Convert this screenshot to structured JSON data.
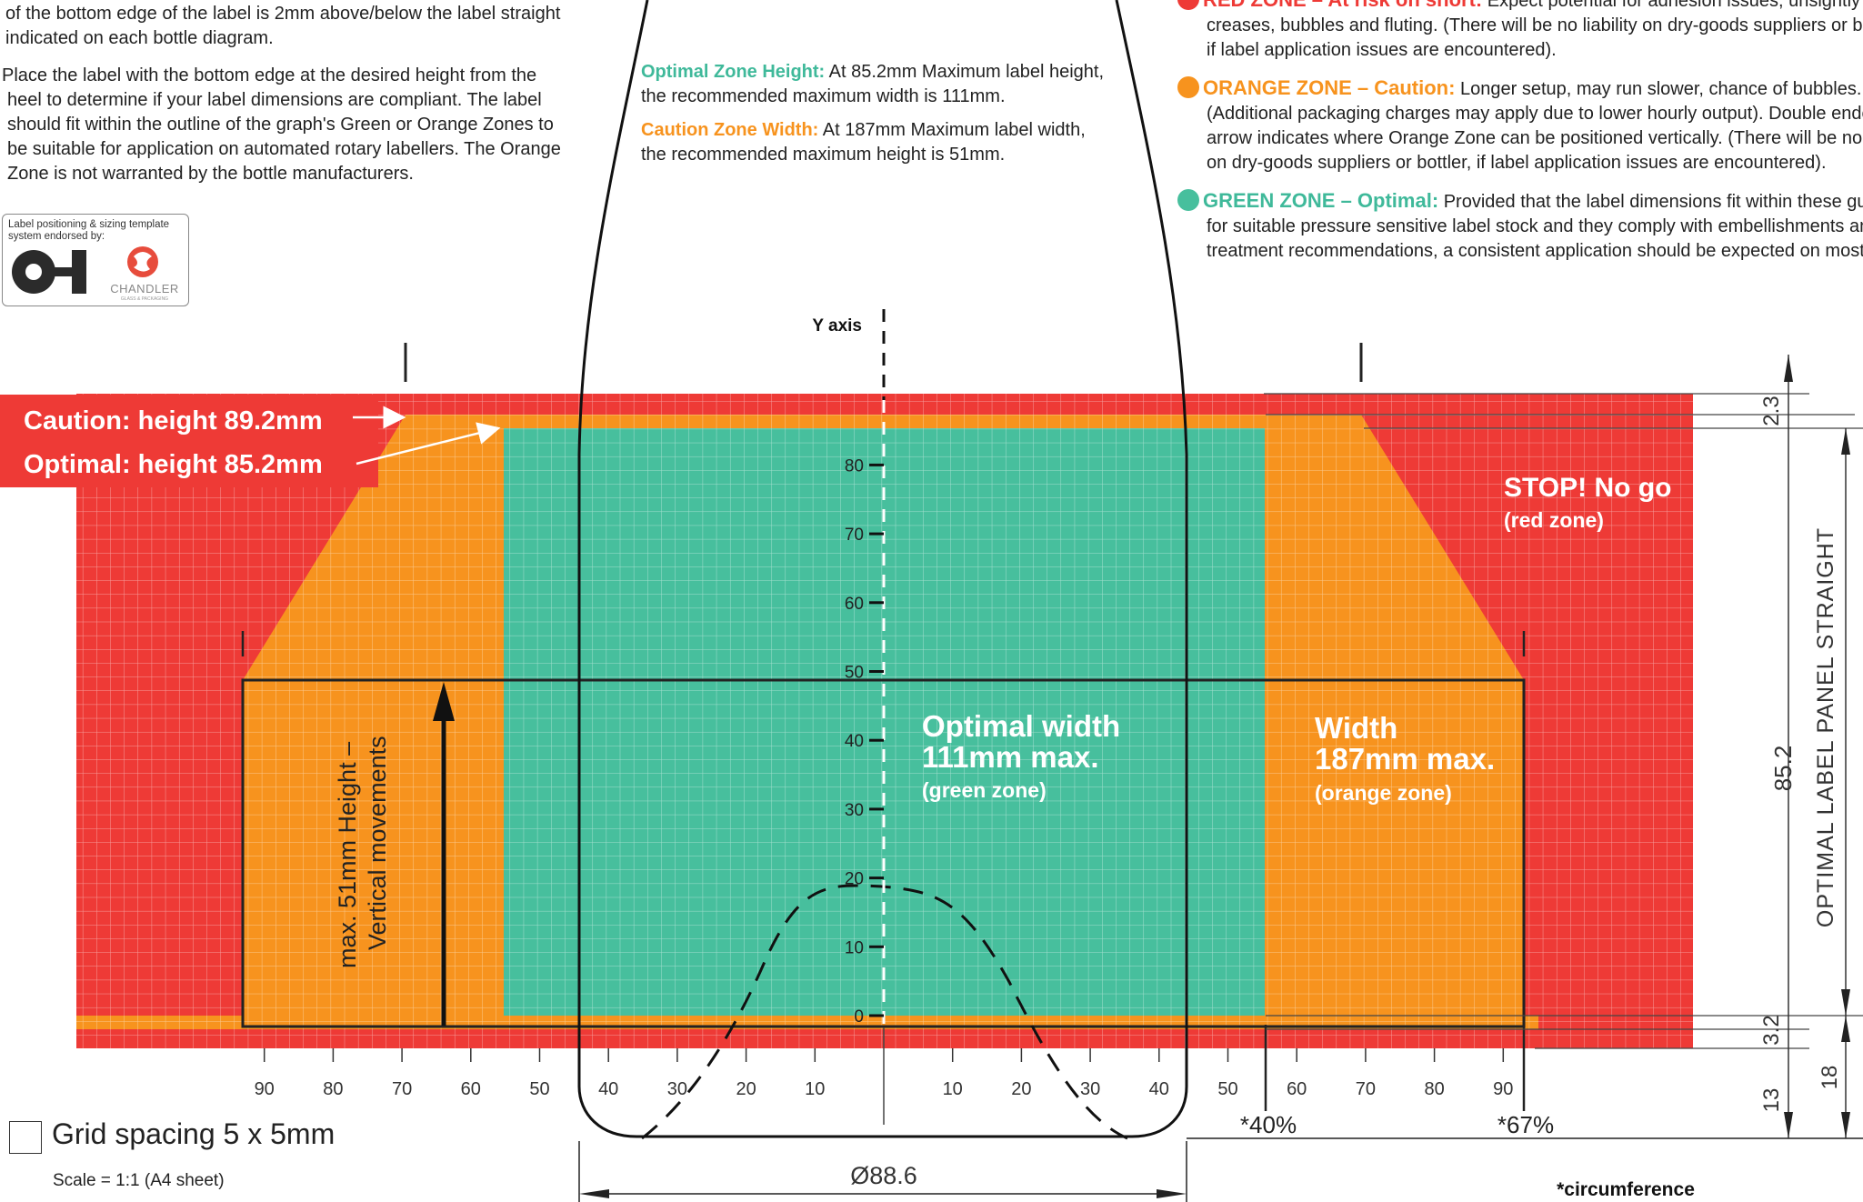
{
  "left_text": {
    "para1_lines": [
      "of the bottom edge of the label is 2mm above/below the label straight",
      "indicated on each bottle diagram."
    ],
    "para2_lines": [
      "Place the label with the bottom edge at the desired height from the",
      "heel to determine if your label dimensions are compliant. The label",
      "should fit within the outline of the graph's Green or Orange Zones to",
      "be suitable for application on automated rotary labellers. The Orange",
      "Zone is not warranted by the bottle manufacturers."
    ]
  },
  "endorsement": {
    "caption_line1": "Label positioning & sizing template",
    "caption_line2": "system endorsed by:",
    "logo1_text": "O-I",
    "logo2_text": "CHANDLER",
    "logo2_sub": "GLASS & PACKAGING"
  },
  "center_text": {
    "optimal_heading": "Optimal Zone Height:",
    "optimal_line1": "At 85.2mm Maximum label height,",
    "optimal_line2": "the recommended maximum width is 111mm.",
    "caution_heading": "Caution Zone Width:",
    "caution_line1": "At 187mm Maximum label width,",
    "caution_line2": "the recommended maximum height is 51mm."
  },
  "legend": {
    "red_heading": "RED ZONE – At risk on short:",
    "red_lines": [
      "Expect potential for adhesion issues, unsightly",
      "creases, bubbles and fluting. (There will be no liability on dry-goods suppliers or bo",
      "if label application issues are encountered)."
    ],
    "orange_heading": "ORANGE ZONE – Caution:",
    "orange_lines": [
      "Longer setup, may run slower, chance of bubbles.",
      "(Additional packaging charges may apply due to lower hourly output). Double ende",
      "arrow indicates where Orange Zone can be positioned vertically. (There will be no li",
      "on dry-goods suppliers or bottler, if label application issues are encountered)."
    ],
    "green_heading": "GREEN ZONE – Optimal:",
    "green_lines": [
      "Provided that the label dimensions fit within these guide",
      "for suitable pressure sensitive label stock and they comply with embellishments and",
      "treatment recommendations, a consistent application should be expected on most b"
    ]
  },
  "diagram": {
    "y_axis_label": "Y axis",
    "caution_height_label": "Caution: height 89.2mm",
    "optimal_height_label": "Optimal: height 85.2mm",
    "stop_label": "STOP! No go",
    "stop_sub": "(red zone)",
    "optimal_width_line1": "Optimal width",
    "optimal_width_line2": "111mm max.",
    "optimal_width_sub": "(green zone)",
    "width_line1": "Width",
    "width_line2": "187mm max.",
    "width_sub": "(orange zone)",
    "vertical_line1": "max. 51mm Height –",
    "vertical_line2": "Vertical movements",
    "y_ticks": [
      "80",
      "70",
      "60",
      "50",
      "40",
      "30",
      "20",
      "10",
      "0"
    ],
    "x_ticks_left": [
      "90",
      "80",
      "70",
      "60",
      "50",
      "40",
      "30",
      "20",
      "10"
    ],
    "x_ticks_right": [
      "10",
      "20",
      "30",
      "40",
      "50",
      "60",
      "70",
      "80",
      "90"
    ],
    "pct_40": "*40%",
    "pct_67": "*67%",
    "diameter": "Ø88.6",
    "circumference": "*circumference",
    "grid_spacing": "Grid spacing 5 x 5mm",
    "scale": "Scale = 1:1 (A4 sheet)",
    "dim_panel_label": "OPTIMAL LABEL PANEL STRAIGHT",
    "dim_85": "85.2",
    "dim_23": "2.3",
    "dim_32": "3.2",
    "dim_13": "13",
    "dim_18": "18"
  },
  "colors": {
    "red": "#ee3a36",
    "orange": "#f7931e",
    "green": "#47bf9d",
    "text_green": "#3fb99a",
    "text_orange": "#f7931e"
  }
}
